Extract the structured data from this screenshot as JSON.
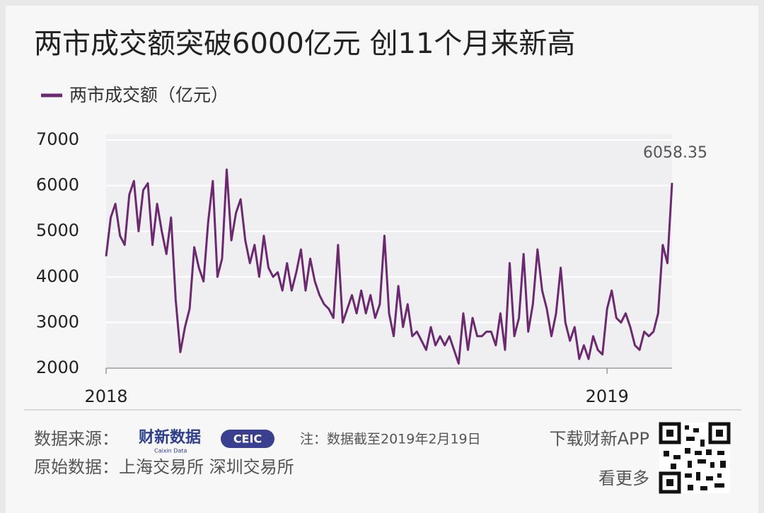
{
  "chart_data": {
    "type": "line",
    "title": "两市成交额突破6000亿元 创11个月来新高",
    "categories": [
      "2018",
      null,
      null,
      null,
      null,
      null,
      null,
      null,
      null,
      null,
      null,
      null,
      null,
      null,
      null,
      null,
      null,
      null,
      null,
      null,
      null,
      null,
      null,
      null,
      null,
      null,
      null,
      null,
      null,
      null,
      null,
      null,
      null,
      null,
      null,
      null,
      null,
      null,
      null,
      null,
      null,
      null,
      null,
      null,
      null,
      null,
      null,
      null,
      null,
      null,
      null,
      null,
      null,
      null,
      null,
      null,
      null,
      null,
      null,
      null,
      null,
      null,
      null,
      null,
      null,
      null,
      null,
      null,
      null,
      null,
      null,
      null,
      null,
      null,
      null,
      null,
      null,
      null,
      null,
      null,
      null,
      null,
      null,
      null,
      null,
      null,
      null,
      null,
      null,
      null,
      null,
      null,
      null,
      null,
      null,
      null,
      null,
      null,
      null,
      null,
      null,
      null,
      null,
      null,
      null,
      null,
      null,
      null,
      "2019",
      null,
      null,
      null,
      null,
      null,
      null,
      null,
      null,
      null,
      null,
      null,
      null,
      null,
      null
    ],
    "series": [
      {
        "name": "两市成交额（亿元）",
        "color": "#6b2a6f",
        "values": [
          4450,
          5300,
          5600,
          4900,
          4700,
          5800,
          6100,
          5000,
          5900,
          6050,
          4700,
          5600,
          5000,
          4500,
          5300,
          3500,
          2350,
          2900,
          3300,
          4650,
          4200,
          3900,
          5200,
          6100,
          4000,
          4400,
          6350,
          4800,
          5400,
          5700,
          4800,
          4300,
          4700,
          4000,
          4900,
          4200,
          4000,
          4100,
          3700,
          4300,
          3700,
          4100,
          4600,
          3700,
          4400,
          3900,
          3600,
          3400,
          3300,
          3100,
          4700,
          3000,
          3300,
          3600,
          3200,
          3700,
          3200,
          3600,
          3100,
          3400,
          4900,
          3200,
          2700,
          3800,
          2900,
          3400,
          2700,
          2800,
          2600,
          2400,
          2900,
          2500,
          2700,
          2500,
          2700,
          2400,
          2100,
          3200,
          2400,
          3100,
          2700,
          2700,
          2800,
          2800,
          2500,
          3200,
          2400,
          4300,
          2700,
          3100,
          4500,
          2800,
          3400,
          4600,
          3700,
          3300,
          2700,
          3200,
          4200,
          3000,
          2600,
          2900,
          2200,
          2500,
          2200,
          2700,
          2400,
          2300,
          3300,
          3700,
          3100,
          3000,
          3200,
          2900,
          2500,
          2400,
          2800,
          2700,
          2800,
          3200,
          4700,
          4300,
          6058.35
        ]
      }
    ],
    "ylim": [
      2000,
      7000
    ],
    "yticks": [
      2000,
      3000,
      4000,
      5000,
      6000,
      7000
    ],
    "grid": true
  },
  "footer": {
    "source_label": "数据来源：",
    "logo_text": "财新数据",
    "logo_sub": "Caixin Data",
    "ceic": "CEIC",
    "note": "注：数据截至2019年2月19日",
    "app": "下载财新APP",
    "origin": "原始数据：上海交易所  深圳交易所",
    "more": "看更多"
  }
}
